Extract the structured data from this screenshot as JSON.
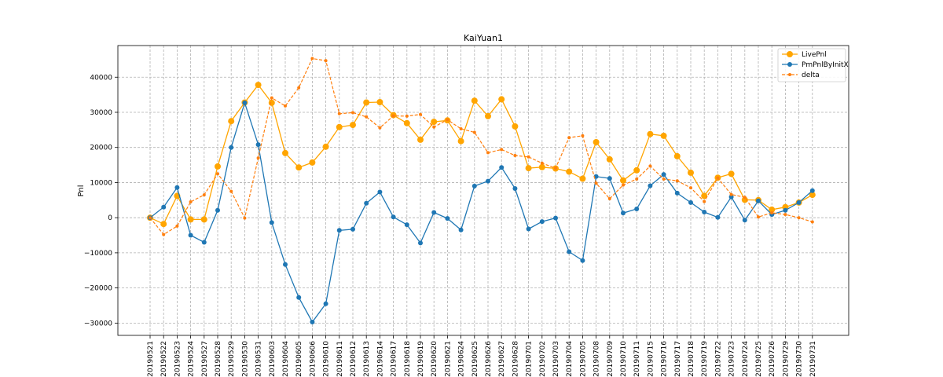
{
  "chart_data": {
    "type": "line",
    "title": "KaiYuan1",
    "xlabel": "",
    "ylabel": "Pnl",
    "ylim": [
      -33500,
      49000
    ],
    "yticks": [
      -30000,
      -20000,
      -10000,
      0,
      10000,
      20000,
      30000,
      40000
    ],
    "grid": true,
    "legend_position": "top-right",
    "categories": [
      "20190521",
      "20190522",
      "20190523",
      "20190524",
      "20190527",
      "20190528",
      "20190529",
      "20190530",
      "20190531",
      "20190603",
      "20190604",
      "20190605",
      "20190606",
      "20190610",
      "20190611",
      "20190612",
      "20190613",
      "20190614",
      "20190617",
      "20190618",
      "20190619",
      "20190620",
      "20190621",
      "20190624",
      "20190625",
      "20190626",
      "20190627",
      "20190628",
      "20190701",
      "20190702",
      "20190703",
      "20190704",
      "20190705",
      "20190708",
      "20190709",
      "20190710",
      "20190711",
      "20190715",
      "20190716",
      "20190717",
      "20190718",
      "20190719",
      "20190722",
      "20190723",
      "20190724",
      "20190725",
      "20190726",
      "20190729",
      "20190730",
      "20190731"
    ],
    "series": [
      {
        "name": "LivePnl",
        "color": "#ffa500",
        "style": "solid",
        "marker": "large-circle",
        "values": [
          0,
          -1800,
          6200,
          -500,
          -500,
          14600,
          27500,
          32800,
          37800,
          32700,
          18400,
          14300,
          15700,
          20200,
          25800,
          26400,
          32800,
          32900,
          29200,
          26900,
          22200,
          27300,
          27700,
          21800,
          33300,
          28900,
          33700,
          26000,
          14100,
          14400,
          14000,
          13100,
          11100,
          21500,
          16600,
          10600,
          13500,
          23800,
          23300,
          17500,
          12800,
          6200,
          11400,
          12500,
          5100,
          5000,
          2300,
          3000,
          4300,
          6500
        ]
      },
      {
        "name": "PmPnlByInitX",
        "color": "#1f77b4",
        "style": "solid",
        "marker": "circle",
        "values": [
          0,
          3000,
          8600,
          -5000,
          -7000,
          2100,
          20000,
          32700,
          20800,
          -1400,
          -13300,
          -22700,
          -29700,
          -24500,
          -3600,
          -3300,
          4100,
          7300,
          200,
          -2000,
          -7200,
          1500,
          -200,
          -3500,
          9000,
          10400,
          14300,
          8300,
          -3200,
          -1100,
          -100,
          -9700,
          -12200,
          11700,
          11200,
          1300,
          2500,
          9100,
          12300,
          7000,
          4300,
          1600,
          100,
          5900,
          -700,
          4800,
          900,
          2100,
          4300,
          7700
        ]
      },
      {
        "name": "delta",
        "color": "#ff7f0e",
        "style": "dashed",
        "marker": "small-circle",
        "values": [
          0,
          -4800,
          -2400,
          4500,
          6500,
          12500,
          7500,
          -100,
          17000,
          34100,
          31800,
          37000,
          45300,
          44700,
          29600,
          29900,
          28700,
          25600,
          29000,
          28900,
          29400,
          25800,
          27900,
          25300,
          24300,
          18500,
          19400,
          17700,
          17300,
          15500,
          14100,
          22800,
          23300,
          9800,
          5400,
          9300,
          11000,
          14700,
          11000,
          10500,
          8500,
          4600,
          11300,
          6600,
          5800,
          200,
          1400,
          900,
          0,
          -1200
        ]
      }
    ]
  }
}
